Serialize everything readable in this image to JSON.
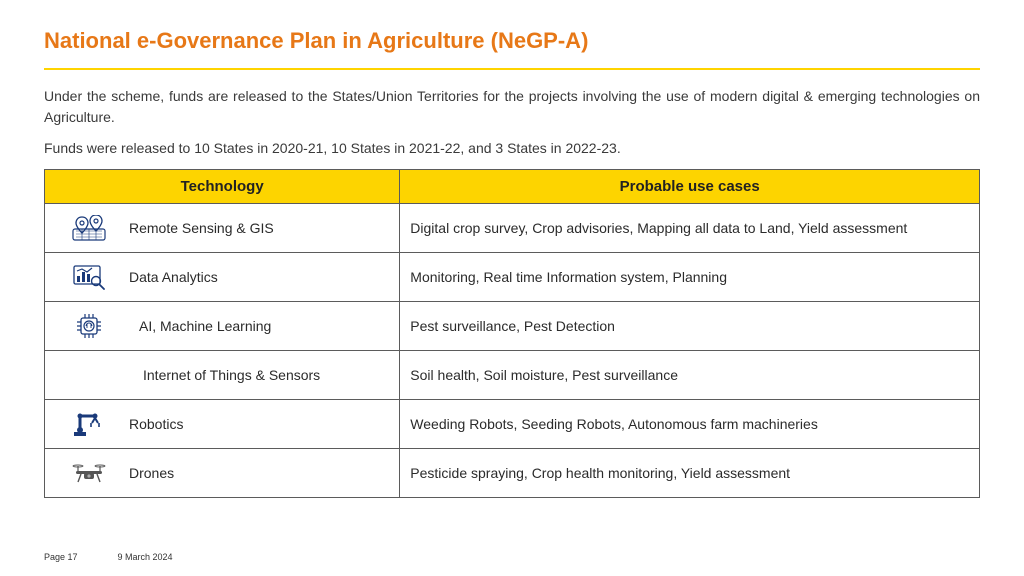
{
  "title": "National e-Governance Plan in Agriculture (NeGP-A)",
  "title_color": "#e77817",
  "divider_color": "#ffd400",
  "paragraphs": [
    "Under the scheme, funds are released to the States/Union Territories for the projects involving the use of modern digital & emerging technologies on Agriculture.",
    "Funds were released to 10 States in 2020-21, 10 States in 2021-22, and 3 States in 2022-23."
  ],
  "table": {
    "header_bg": "#fdd400",
    "border_color": "#5b5b5b",
    "columns": [
      "Technology",
      "Probable use cases"
    ],
    "rows": [
      {
        "icon": "map-pin",
        "tech": "Remote Sensing & GIS",
        "indent": 0,
        "usecase": "Digital crop survey, Crop advisories, Mapping all data to Land, Yield assessment"
      },
      {
        "icon": "analytics",
        "tech": "Data Analytics",
        "indent": 0,
        "usecase": "Monitoring, Real time Information system, Planning"
      },
      {
        "icon": "ai-chip",
        "tech": "AI, Machine Learning",
        "indent": 10,
        "usecase": "Pest surveillance, Pest Detection"
      },
      {
        "icon": "",
        "tech": "Internet of Things & Sensors",
        "indent": 14,
        "usecase": "Soil health, Soil moisture, Pest surveillance"
      },
      {
        "icon": "robot-arm",
        "tech": "Robotics",
        "indent": 0,
        "usecase": "Weeding Robots, Seeding Robots, Autonomous farm machineries"
      },
      {
        "icon": "drone",
        "tech": "Drones",
        "indent": 0,
        "usecase": "Pesticide spraying, Crop health monitoring, Yield assessment"
      }
    ]
  },
  "icon_color": "#1a3a7a",
  "footer": {
    "page": "Page 17",
    "date": "9 March 2024"
  }
}
